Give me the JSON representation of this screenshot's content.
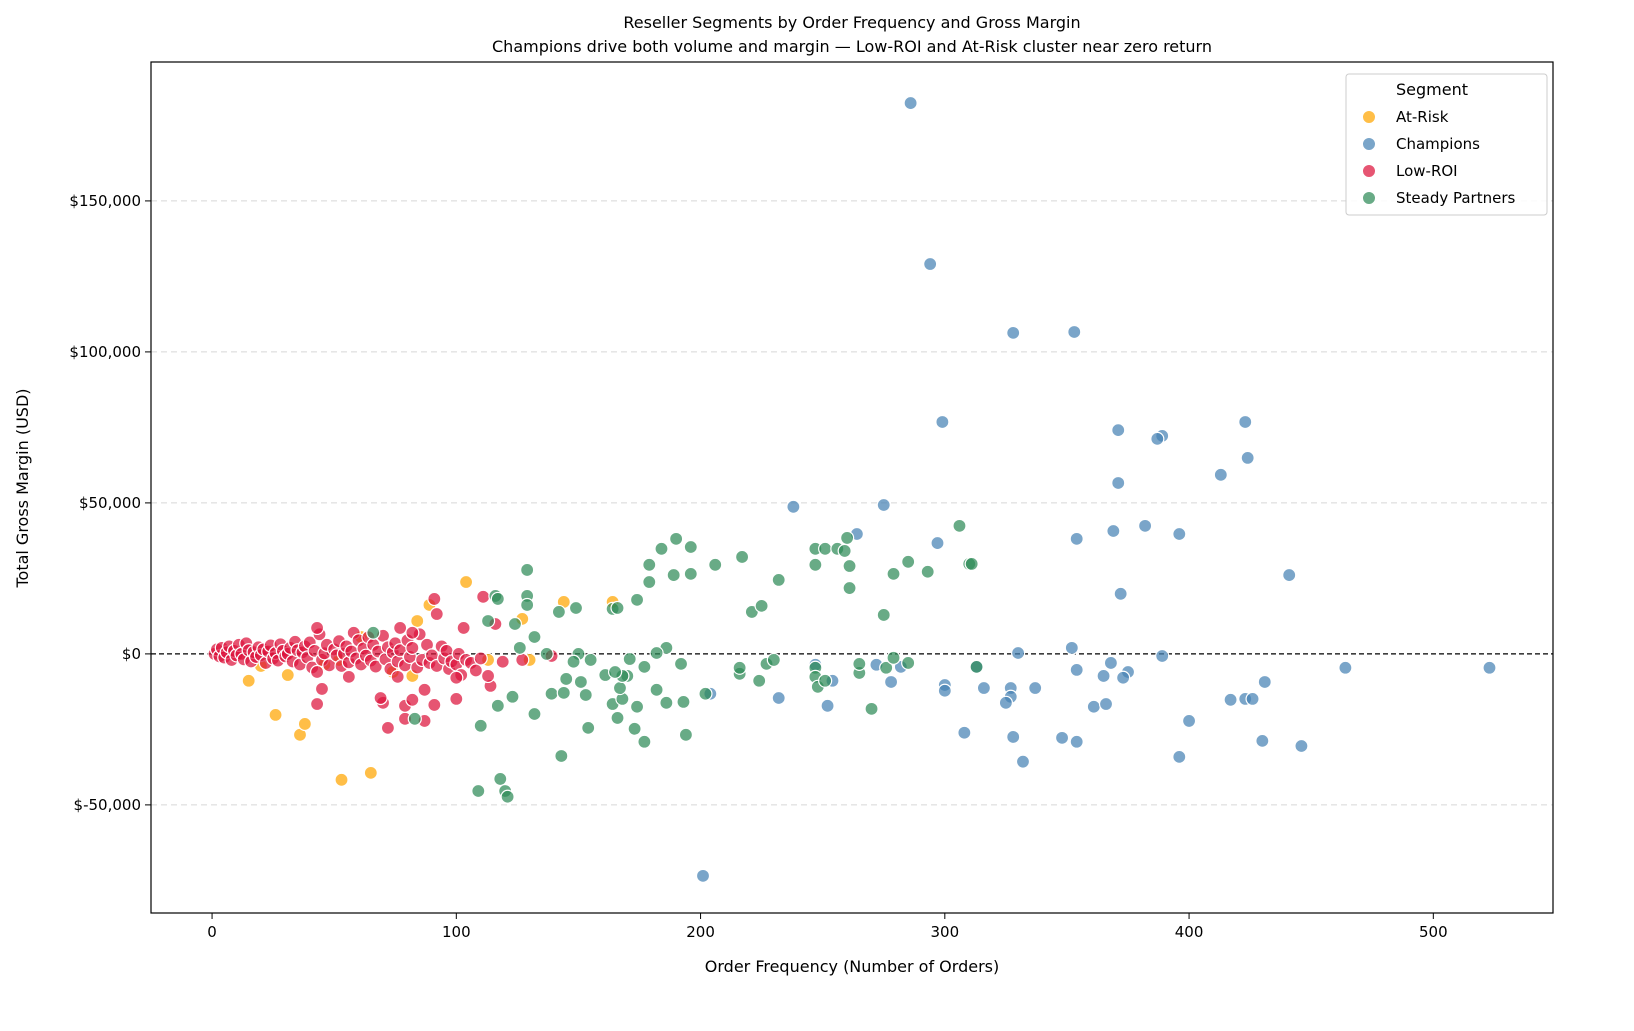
{
  "chart_data": {
    "type": "scatter",
    "title": "Reseller Segments by Order Frequency and Gross Margin",
    "subtitle": "Champions drive both volume and margin — Low-ROI and At-Risk cluster near zero return",
    "xlabel": "Order Frequency (Number of Orders)",
    "ylabel": "Total Gross Margin (USD)",
    "xlim": [
      -25,
      549
    ],
    "ylim": [
      -85800,
      196000
    ],
    "xticks": [
      0,
      100,
      200,
      300,
      400,
      500
    ],
    "xtick_labels": [
      "0",
      "100",
      "200",
      "300",
      "400",
      "500"
    ],
    "yticks": [
      -50000,
      0,
      50000,
      100000,
      150000
    ],
    "ytick_labels": [
      "$-50,000",
      "$0",
      "$50,000",
      "$100,000",
      "$150,000"
    ],
    "grid": "horizontal dashed",
    "reference_line": {
      "y": 0,
      "style": "dashed black"
    },
    "legend": {
      "title": "Segment",
      "placement": "top-right"
    },
    "series": [
      {
        "name": "At-Risk",
        "color": "#FFA500",
        "points": [
          [
            104,
            23800
          ],
          [
            144,
            17200
          ],
          [
            164,
            17200
          ],
          [
            127,
            11600
          ],
          [
            84,
            10900
          ],
          [
            89,
            16200
          ],
          [
            26,
            -20200
          ],
          [
            36,
            -26800
          ],
          [
            38,
            -23200
          ],
          [
            15,
            -8900
          ],
          [
            53,
            -41700
          ],
          [
            65,
            -39400
          ],
          [
            31,
            -7000
          ],
          [
            52,
            -2000
          ],
          [
            113,
            -2000
          ],
          [
            130,
            -2000
          ],
          [
            61,
            5600
          ],
          [
            82,
            -7300
          ],
          [
            20,
            -4000
          ],
          [
            46,
            -3500
          ],
          [
            74,
            -6000
          ]
        ]
      },
      {
        "name": "Champions",
        "color": "#4682B4",
        "points": [
          [
            286,
            182400
          ],
          [
            294,
            129100
          ],
          [
            328,
            106300
          ],
          [
            353,
            106600
          ],
          [
            299,
            76800
          ],
          [
            371,
            74100
          ],
          [
            389,
            72200
          ],
          [
            387,
            71200
          ],
          [
            423,
            76800
          ],
          [
            424,
            64900
          ],
          [
            413,
            59300
          ],
          [
            371,
            56600
          ],
          [
            275,
            49300
          ],
          [
            238,
            48700
          ],
          [
            264,
            39700
          ],
          [
            369,
            40700
          ],
          [
            382,
            42400
          ],
          [
            396,
            39700
          ],
          [
            297,
            36700
          ],
          [
            354,
            38100
          ],
          [
            441,
            26100
          ],
          [
            372,
            19900
          ],
          [
            352,
            2000
          ],
          [
            330,
            300
          ],
          [
            389,
            -700
          ],
          [
            464,
            -4600
          ],
          [
            523,
            -4600
          ],
          [
            354,
            -5300
          ],
          [
            368,
            -3000
          ],
          [
            375,
            -6000
          ],
          [
            373,
            -7900
          ],
          [
            365,
            -7300
          ],
          [
            300,
            -10300
          ],
          [
            300,
            -12200
          ],
          [
            316,
            -11300
          ],
          [
            313,
            -4300
          ],
          [
            327,
            -11300
          ],
          [
            337,
            -11300
          ],
          [
            327,
            -14200
          ],
          [
            325,
            -16200
          ],
          [
            361,
            -17500
          ],
          [
            366,
            -16600
          ],
          [
            400,
            -22200
          ],
          [
            417,
            -15200
          ],
          [
            423,
            -14900
          ],
          [
            426,
            -14900
          ],
          [
            431,
            -9300
          ],
          [
            308,
            -26100
          ],
          [
            328,
            -27500
          ],
          [
            348,
            -27800
          ],
          [
            354,
            -29100
          ],
          [
            430,
            -28800
          ],
          [
            446,
            -30500
          ],
          [
            332,
            -35700
          ],
          [
            396,
            -34100
          ],
          [
            278,
            -9300
          ],
          [
            254,
            -8900
          ],
          [
            252,
            -17200
          ],
          [
            232,
            -14600
          ],
          [
            204,
            -13200
          ],
          [
            201,
            -73500
          ],
          [
            272,
            -3600
          ],
          [
            282,
            -4300
          ],
          [
            247,
            -3600
          ]
        ]
      },
      {
        "name": "Low-ROI",
        "color": "#DC143C",
        "points": [
          [
            1,
            0
          ],
          [
            2,
            1500
          ],
          [
            3,
            -800
          ],
          [
            4,
            2000
          ],
          [
            5,
            -1200
          ],
          [
            6,
            500
          ],
          [
            7,
            2500
          ],
          [
            8,
            -2000
          ],
          [
            9,
            1000
          ],
          [
            10,
            -500
          ],
          [
            11,
            3000
          ],
          [
            12,
            0
          ],
          [
            13,
            -1800
          ],
          [
            14,
            3500
          ],
          [
            15,
            1200
          ],
          [
            16,
            -2500
          ],
          [
            17,
            600
          ],
          [
            18,
            -1000
          ],
          [
            19,
            2200
          ],
          [
            20,
            -400
          ],
          [
            21,
            1500
          ],
          [
            22,
            -3000
          ],
          [
            23,
            800
          ],
          [
            24,
            2800
          ],
          [
            25,
            -1500
          ],
          [
            26,
            300
          ],
          [
            27,
            -2200
          ],
          [
            28,
            3200
          ],
          [
            29,
            1000
          ],
          [
            30,
            -800
          ],
          [
            31,
            0
          ],
          [
            32,
            2000
          ],
          [
            33,
            -2500
          ],
          [
            34,
            4000
          ],
          [
            35,
            1200
          ],
          [
            36,
            -3500
          ],
          [
            37,
            500
          ],
          [
            38,
            2500
          ],
          [
            39,
            -1200
          ],
          [
            40,
            3800
          ],
          [
            41,
            -4500
          ],
          [
            42,
            1000
          ],
          [
            44,
            6500
          ],
          [
            45,
            -2000
          ],
          [
            46,
            200
          ],
          [
            47,
            3000
          ],
          [
            48,
            -3800
          ],
          [
            50,
            1500
          ],
          [
            51,
            -500
          ],
          [
            52,
            4200
          ],
          [
            53,
            -4000
          ],
          [
            54,
            0
          ],
          [
            55,
            2500
          ],
          [
            56,
            -2800
          ],
          [
            57,
            800
          ],
          [
            58,
            7000
          ],
          [
            59,
            -1500
          ],
          [
            60,
            4500
          ],
          [
            61,
            -3500
          ],
          [
            62,
            1800
          ],
          [
            63,
            -600
          ],
          [
            64,
            5500
          ],
          [
            65,
            -2200
          ],
          [
            66,
            3000
          ],
          [
            67,
            -4200
          ],
          [
            68,
            800
          ],
          [
            70,
            6000
          ],
          [
            71,
            -1800
          ],
          [
            72,
            2200
          ],
          [
            73,
            -5000
          ],
          [
            74,
            500
          ],
          [
            75,
            3500
          ],
          [
            76,
            -2500
          ],
          [
            77,
            1200
          ],
          [
            79,
            -3800
          ],
          [
            80,
            4500
          ],
          [
            81,
            -1000
          ],
          [
            82,
            2000
          ],
          [
            84,
            -4500
          ],
          [
            85,
            6500
          ],
          [
            86,
            -2000
          ],
          [
            88,
            3000
          ],
          [
            89,
            -3000
          ],
          [
            90,
            -500
          ],
          [
            92,
            -4000
          ],
          [
            94,
            2500
          ],
          [
            95,
            -1500
          ],
          [
            96,
            1000
          ],
          [
            97,
            -5000
          ],
          [
            98,
            -2500
          ],
          [
            100,
            -3500
          ],
          [
            101,
            0
          ],
          [
            102,
            -7000
          ],
          [
            104,
            -2000
          ],
          [
            106,
            -3000
          ],
          [
            108,
            -5500
          ],
          [
            110,
            -1500
          ],
          [
            91,
            18200
          ],
          [
            92,
            13200
          ],
          [
            111,
            18900
          ],
          [
            116,
            9900
          ],
          [
            103,
            8600
          ],
          [
            43,
            8600
          ],
          [
            77,
            8600
          ],
          [
            82,
            7000
          ],
          [
            43,
            -16600
          ],
          [
            87,
            -22200
          ],
          [
            79,
            -21500
          ],
          [
            72,
            -24500
          ],
          [
            79,
            -17200
          ],
          [
            91,
            -16900
          ],
          [
            70,
            -16200
          ],
          [
            82,
            -15200
          ],
          [
            100,
            -14900
          ],
          [
            45,
            -11600
          ],
          [
            114,
            -10600
          ],
          [
            113,
            -7300
          ],
          [
            100,
            -7900
          ],
          [
            87,
            -11900
          ],
          [
            56,
            -7600
          ],
          [
            76,
            -7600
          ],
          [
            43,
            -6000
          ],
          [
            69,
            -14600
          ],
          [
            119,
            -2600
          ],
          [
            127,
            -2000
          ],
          [
            139,
            -700
          ]
        ]
      },
      {
        "name": "Steady Partners",
        "color": "#2E8B57",
        "points": [
          [
            66,
            7000
          ],
          [
            116,
            19200
          ],
          [
            117,
            18200
          ],
          [
            129,
            27800
          ],
          [
            129,
            19200
          ],
          [
            129,
            16200
          ],
          [
            113,
            10900
          ],
          [
            124,
            9900
          ],
          [
            132,
            5600
          ],
          [
            142,
            13900
          ],
          [
            149,
            15200
          ],
          [
            126,
            2000
          ],
          [
            137,
            0
          ],
          [
            150,
            0
          ],
          [
            148,
            -2600
          ],
          [
            155,
            -2000
          ],
          [
            151,
            -9300
          ],
          [
            145,
            -8300
          ],
          [
            139,
            -13200
          ],
          [
            144,
            -12900
          ],
          [
            153,
            -13600
          ],
          [
            154,
            -24500
          ],
          [
            132,
            -19900
          ],
          [
            123,
            -14200
          ],
          [
            117,
            -17200
          ],
          [
            110,
            -23800
          ],
          [
            83,
            -21500
          ],
          [
            109,
            -45400
          ],
          [
            118,
            -41400
          ],
          [
            120,
            -45400
          ],
          [
            121,
            -47300
          ],
          [
            143,
            -33800
          ],
          [
            164,
            -16600
          ],
          [
            166,
            -21200
          ],
          [
            168,
            -14900
          ],
          [
            167,
            -11300
          ],
          [
            170,
            -7300
          ],
          [
            168,
            -7300
          ],
          [
            174,
            -17500
          ],
          [
            173,
            -24800
          ],
          [
            177,
            -29100
          ],
          [
            171,
            -1700
          ],
          [
            161,
            -7000
          ],
          [
            165,
            -6000
          ],
          [
            177,
            -4300
          ],
          [
            182,
            -11900
          ],
          [
            186,
            -16200
          ],
          [
            193,
            -15900
          ],
          [
            194,
            -26800
          ],
          [
            202,
            -13200
          ],
          [
            192,
            -3300
          ],
          [
            186,
            2000
          ],
          [
            182,
            300
          ],
          [
            164,
            14900
          ],
          [
            166,
            15200
          ],
          [
            174,
            17900
          ],
          [
            179,
            29500
          ],
          [
            179,
            23800
          ],
          [
            184,
            34800
          ],
          [
            190,
            38100
          ],
          [
            189,
            26100
          ],
          [
            196,
            35400
          ],
          [
            196,
            26500
          ],
          [
            206,
            29500
          ],
          [
            217,
            32100
          ],
          [
            221,
            13900
          ],
          [
            225,
            15900
          ],
          [
            232,
            24500
          ],
          [
            247,
            34800
          ],
          [
            247,
            29500
          ],
          [
            251,
            34800
          ],
          [
            256,
            34800
          ],
          [
            260,
            38400
          ],
          [
            259,
            34100
          ],
          [
            261,
            29100
          ],
          [
            261,
            21800
          ],
          [
            275,
            12900
          ],
          [
            279,
            26500
          ],
          [
            285,
            30500
          ],
          [
            293,
            27200
          ],
          [
            306,
            42400
          ],
          [
            310,
            29800
          ],
          [
            311,
            29800
          ],
          [
            216,
            -6600
          ],
          [
            216,
            -4600
          ],
          [
            227,
            -3300
          ],
          [
            230,
            -2000
          ],
          [
            224,
            -8900
          ],
          [
            247,
            -4600
          ],
          [
            247,
            -7600
          ],
          [
            248,
            -10900
          ],
          [
            251,
            -8900
          ],
          [
            265,
            -6300
          ],
          [
            265,
            -3300
          ],
          [
            270,
            -18200
          ],
          [
            276,
            -4600
          ],
          [
            279,
            -1300
          ],
          [
            285,
            -3000
          ],
          [
            313,
            -4300
          ]
        ]
      }
    ]
  }
}
